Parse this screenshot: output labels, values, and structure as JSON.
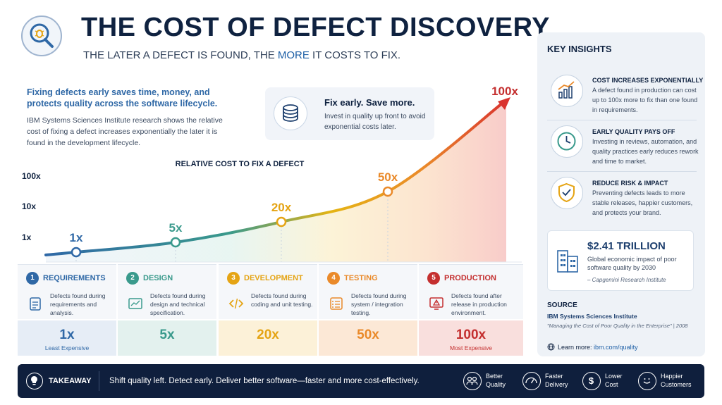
{
  "header": {
    "title": "THE COST OF DEFECT DISCOVERY",
    "subtitle_pre": "THE LATER A DEFECT IS FOUND, THE ",
    "subtitle_hl": "MORE",
    "subtitle_post": " IT COSTS TO FIX."
  },
  "intro": {
    "headline": "Fixing defects early saves time, money, and protects quality across the software lifecycle.",
    "body": "IBM Systems Sciences Institute research shows the relative cost of fixing a defect increases exponentially the later it is found in the development lifecycle."
  },
  "callout": {
    "title": "Fix early. Save more.",
    "body": "Invest in quality up front to avoid exponential costs later."
  },
  "chart_data": {
    "type": "line",
    "title": "RELATIVE COST TO FIX A DEFECT",
    "y_ticks": [
      "100x",
      "10x",
      "1x"
    ],
    "categories": [
      "REQUIREMENTS",
      "DESIGN",
      "DEVELOPMENT",
      "TESTING",
      "PRODUCTION"
    ],
    "values": [
      1,
      5,
      20,
      50,
      100
    ],
    "point_labels": [
      "1x",
      "5x",
      "20x",
      "50x",
      "100x"
    ]
  },
  "stages": [
    {
      "num": "1",
      "name": "REQUIREMENTS",
      "desc": "Defects found during requirements and analysis.",
      "value": "1x",
      "note": "Least Expensive",
      "color": "#2f68a6",
      "bg": "#e6edf6",
      "icon": "clipboard-icon"
    },
    {
      "num": "2",
      "name": "DESIGN",
      "desc": "Defects found during design and technical specification.",
      "value": "5x",
      "note": "",
      "color": "#3a9a8c",
      "bg": "#e3f1ee",
      "icon": "chart-window-icon"
    },
    {
      "num": "3",
      "name": "DEVELOPMENT",
      "desc": "Defects found during coding and unit testing.",
      "value": "20x",
      "note": "",
      "color": "#e5a414",
      "bg": "#fcf1d8",
      "icon": "code-icon"
    },
    {
      "num": "4",
      "name": "TESTING",
      "desc": "Defects found during system / integration testing.",
      "value": "50x",
      "note": "",
      "color": "#ea8a2a",
      "bg": "#fce8d6",
      "icon": "checklist-icon"
    },
    {
      "num": "5",
      "name": "PRODUCTION",
      "desc": "Defects found after release in production environment.",
      "value": "100x",
      "note": "Most Expensive",
      "color": "#c42f2f",
      "bg": "#f9dfdd",
      "icon": "alert-monitor-icon"
    }
  ],
  "insights": {
    "title": "KEY INSIGHTS",
    "items": [
      {
        "title": "COST INCREASES EXPONENTIALLY",
        "body": "A defect found in production can cost up to 100x more to fix than one found in requirements.",
        "icon": "growth-chart-icon"
      },
      {
        "title": "EARLY QUALITY PAYS OFF",
        "body": "Investing in reviews, automation, and quality practices early reduces rework and time to market.",
        "icon": "clock-icon"
      },
      {
        "title": "REDUCE RISK & IMPACT",
        "body": "Preventing defects leads to more stable releases, happier customers, and protects your brand.",
        "icon": "shield-icon"
      }
    ],
    "stat": {
      "value": "$2.41 TRILLION",
      "desc": "Global economic impact of poor software quality by 2030",
      "source": "– Capgemini Research Institute"
    },
    "source_heading": "SOURCE",
    "source_org": "IBM Systems Sciences Institute",
    "source_pub": "\"Managing the Cost of Poor Quality in the Enterprise\" | 2008",
    "learn_more_label": "Learn more:",
    "learn_more_link": "ibm.com/quality"
  },
  "footer": {
    "label": "TAKEAWAY",
    "text": "Shift quality left. Detect early. Deliver better software—faster and more cost-effectively.",
    "benefits": [
      {
        "line1": "Better",
        "line2": "Quality",
        "icon": "users-icon"
      },
      {
        "line1": "Faster",
        "line2": "Delivery",
        "icon": "speedometer-icon"
      },
      {
        "line1": "Lower",
        "line2": "Cost",
        "icon": "dollar-icon"
      },
      {
        "line1": "Happier",
        "line2": "Customers",
        "icon": "smiley-icon"
      }
    ]
  }
}
